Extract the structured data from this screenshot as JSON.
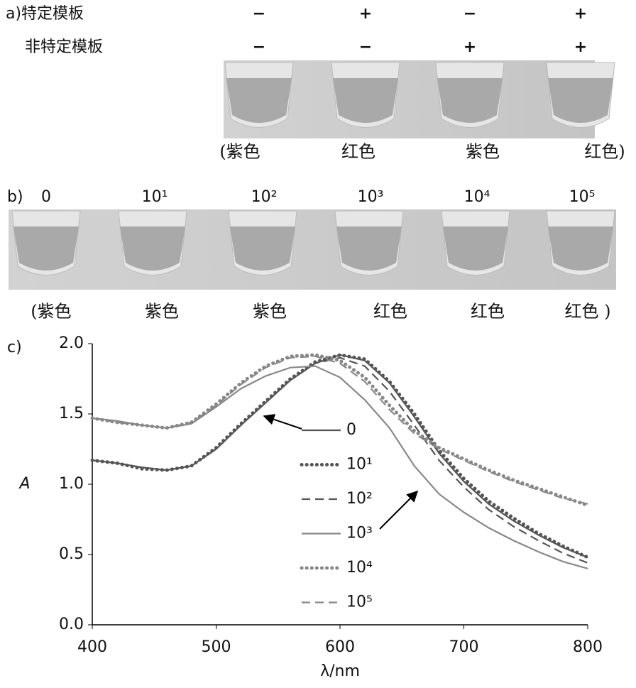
{
  "panel_a": {
    "label": "a)",
    "rows": [
      {
        "name": "特定模板",
        "signs": [
          "−",
          "+",
          "−",
          "+"
        ]
      },
      {
        "name": "非特定模板",
        "signs": [
          "−",
          "−",
          "+",
          "+"
        ]
      }
    ],
    "captions": [
      "(紫色",
      "红色",
      "紫色",
      "红色)"
    ]
  },
  "panel_b": {
    "label": "b)",
    "headers": [
      "0",
      "10¹",
      "10²",
      "10³",
      "10⁴",
      "10⁵"
    ],
    "captions": [
      "(紫色",
      "紫色",
      "紫色",
      "红色",
      "红色",
      "红色 )"
    ]
  },
  "panel_c": {
    "label": "c)"
  },
  "chart_data": {
    "type": "line",
    "xlabel": "λ/nm",
    "ylabel": "A",
    "x": [
      400,
      420,
      440,
      460,
      480,
      500,
      520,
      540,
      560,
      580,
      600,
      620,
      640,
      660,
      680,
      700,
      720,
      740,
      760,
      780,
      800
    ],
    "xlim": [
      400,
      800
    ],
    "xticks": [
      400,
      500,
      600,
      700,
      800
    ],
    "ylim": [
      0,
      2
    ],
    "yticks": [
      {
        "value": 0,
        "label": "0.0"
      },
      {
        "value": 0.5,
        "label": "0.5"
      },
      {
        "value": 1,
        "label": "1.0"
      },
      {
        "value": 1.5,
        "label": "1.5"
      },
      {
        "value": 2,
        "label": "2.0"
      }
    ],
    "series": [
      {
        "name": "0",
        "color": "#555555",
        "style": "solid",
        "values": [
          1.17,
          1.15,
          1.12,
          1.1,
          1.13,
          1.25,
          1.42,
          1.58,
          1.74,
          1.86,
          1.92,
          1.88,
          1.72,
          1.48,
          1.22,
          1.02,
          0.86,
          0.74,
          0.64,
          0.55,
          0.48
        ]
      },
      {
        "name": "10¹",
        "color": "#555555",
        "style": "dotted",
        "values": [
          1.17,
          1.15,
          1.11,
          1.1,
          1.13,
          1.26,
          1.43,
          1.59,
          1.75,
          1.87,
          1.92,
          1.89,
          1.73,
          1.5,
          1.24,
          1.04,
          0.88,
          0.76,
          0.65,
          0.56,
          0.48
        ]
      },
      {
        "name": "10²",
        "color": "#555555",
        "style": "dashed",
        "values": [
          1.17,
          1.15,
          1.12,
          1.1,
          1.13,
          1.25,
          1.42,
          1.58,
          1.74,
          1.86,
          1.9,
          1.84,
          1.66,
          1.42,
          1.17,
          0.98,
          0.82,
          0.7,
          0.6,
          0.51,
          0.44
        ]
      },
      {
        "name": "10³",
        "color": "#888888",
        "style": "solid",
        "values": [
          1.47,
          1.45,
          1.42,
          1.4,
          1.43,
          1.55,
          1.68,
          1.77,
          1.83,
          1.84,
          1.76,
          1.6,
          1.4,
          1.13,
          0.93,
          0.8,
          0.69,
          0.6,
          0.52,
          0.45,
          0.4
        ]
      },
      {
        "name": "10⁴",
        "color": "#888888",
        "style": "dotted",
        "values": [
          1.47,
          1.44,
          1.42,
          1.4,
          1.44,
          1.57,
          1.72,
          1.84,
          1.91,
          1.92,
          1.88,
          1.76,
          1.56,
          1.38,
          1.26,
          1.18,
          1.1,
          1.03,
          0.97,
          0.91,
          0.85
        ]
      },
      {
        "name": "10⁵",
        "color": "#888888",
        "style": "dashed",
        "values": [
          1.47,
          1.44,
          1.42,
          1.4,
          1.44,
          1.56,
          1.71,
          1.83,
          1.9,
          1.91,
          1.86,
          1.73,
          1.53,
          1.36,
          1.25,
          1.17,
          1.09,
          1.02,
          0.96,
          0.9,
          0.86
        ]
      }
    ]
  }
}
